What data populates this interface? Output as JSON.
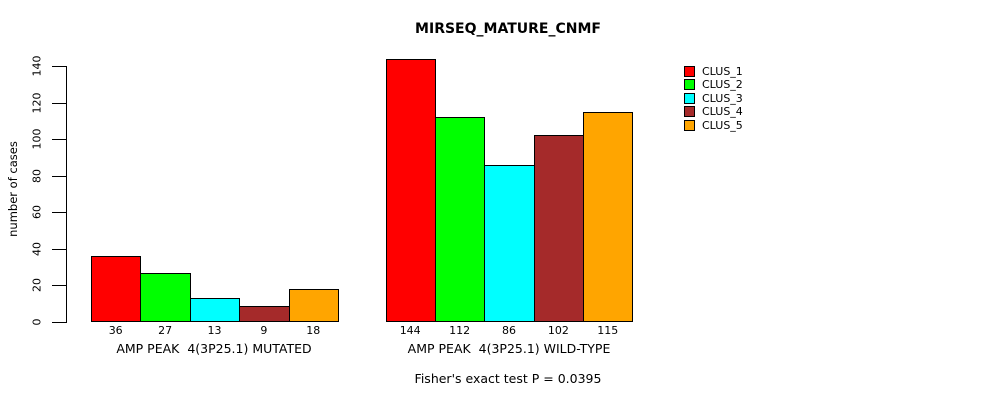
{
  "chart_data": {
    "type": "bar",
    "title": "MIRSEQ_MATURE_CNMF",
    "ylabel": "number of cases",
    "xlabel": "",
    "ylim": [
      0,
      140
    ],
    "yticks": [
      0,
      20,
      40,
      60,
      80,
      100,
      120,
      140
    ],
    "grid": false,
    "legend_position": "top-right",
    "categories": [
      "AMP PEAK  4(3P25.1) MUTATED",
      "AMP PEAK  4(3P25.1) WILD-TYPE"
    ],
    "series": [
      {
        "name": "CLUS_1",
        "color": "#FF0000",
        "values": [
          36,
          144
        ]
      },
      {
        "name": "CLUS_2",
        "color": "#00FF00",
        "values": [
          27,
          112
        ]
      },
      {
        "name": "CLUS_3",
        "color": "#00FFFF",
        "values": [
          13,
          86
        ]
      },
      {
        "name": "CLUS_4",
        "color": "#A52A2A",
        "values": [
          9,
          102
        ]
      },
      {
        "name": "CLUS_5",
        "color": "#FFA500",
        "values": [
          18,
          115
        ]
      }
    ],
    "bar_value_labels_shown": true,
    "footnote": "Fisher's exact test P = 0.0395"
  }
}
